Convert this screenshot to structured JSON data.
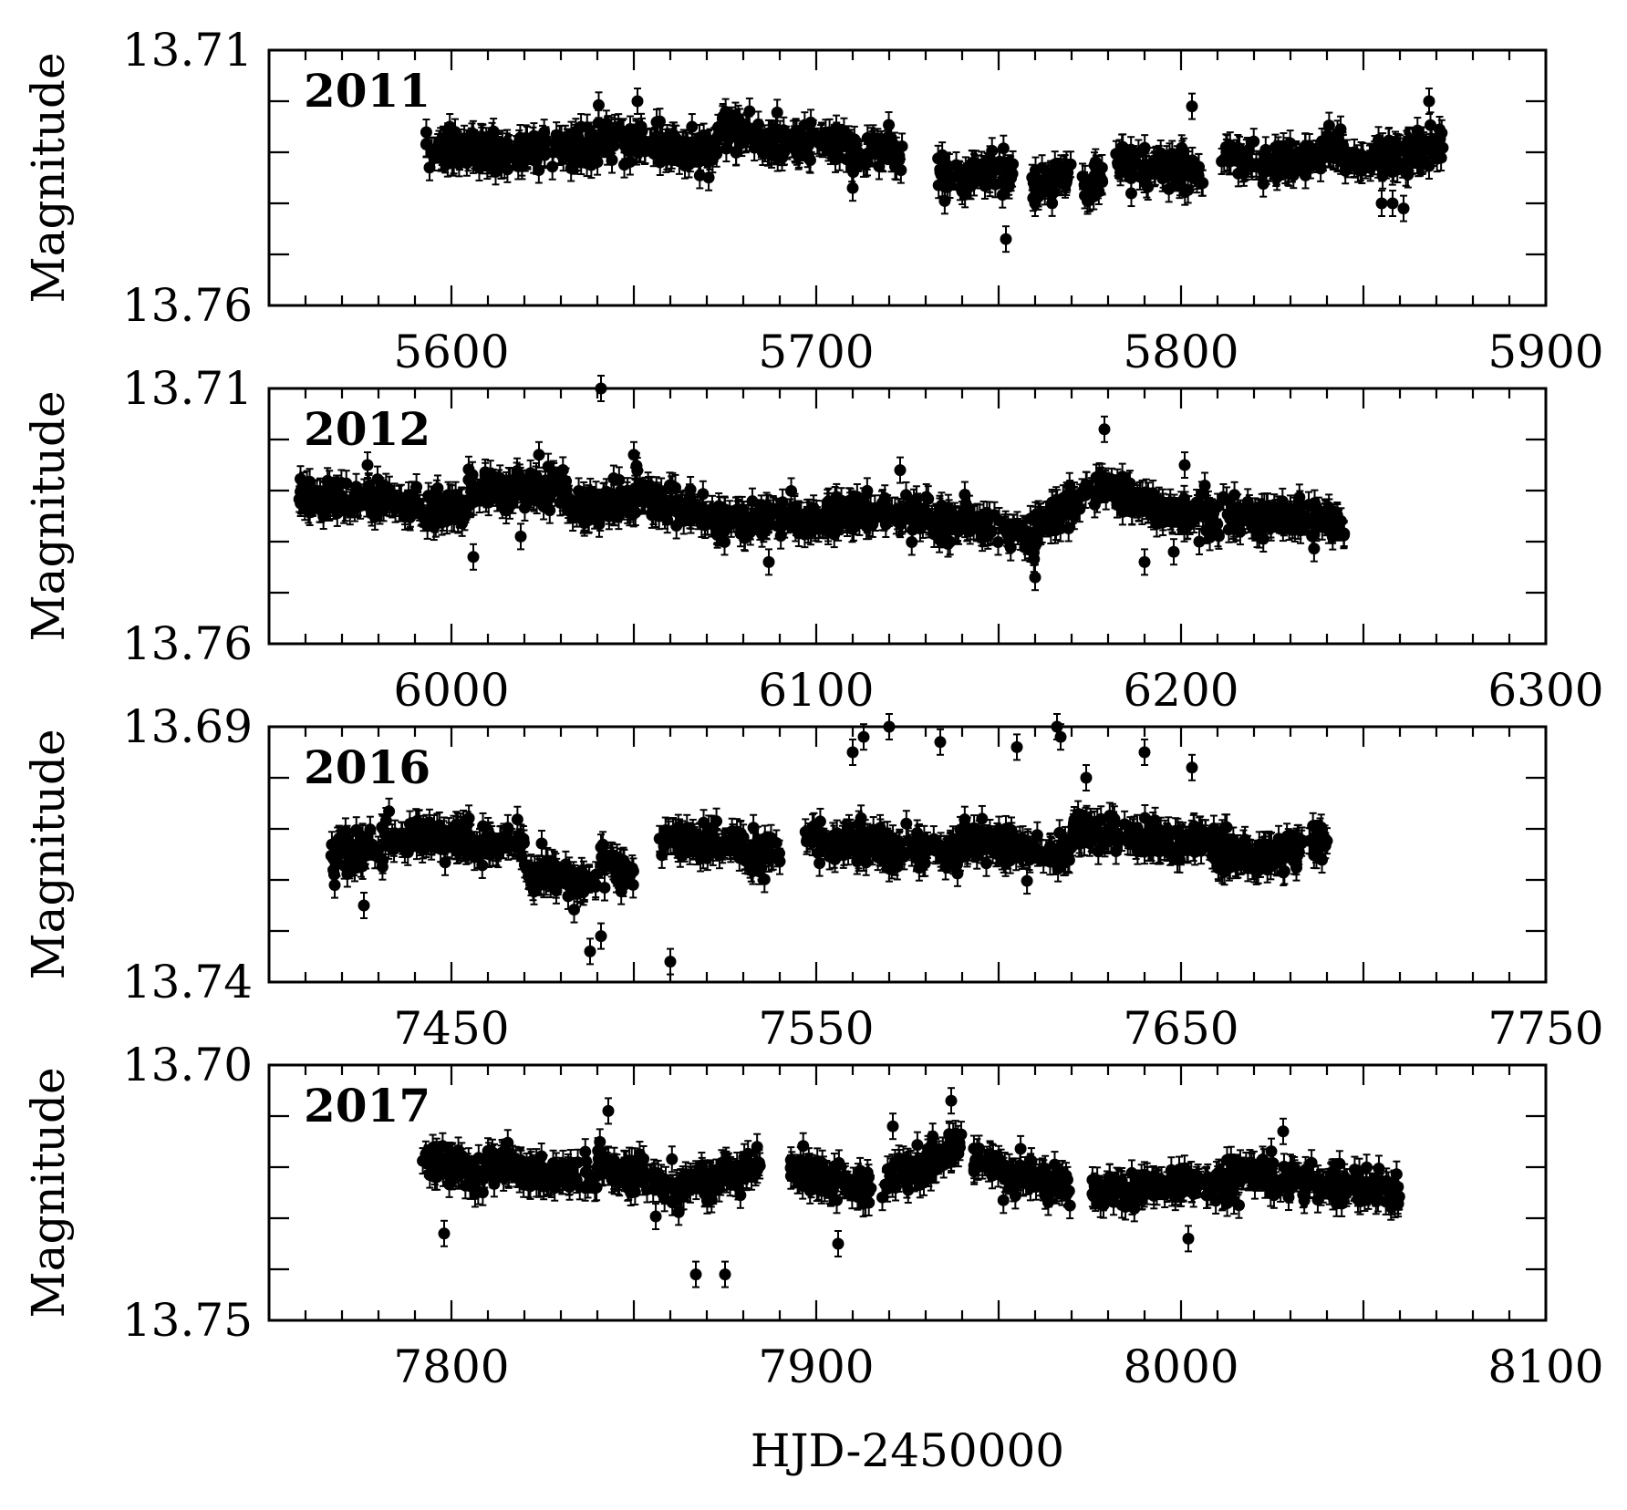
{
  "chart_data": [
    {
      "type": "scatter",
      "panel_label": "2011",
      "ylabel": "Magnitude",
      "xlim": [
        5550,
        5900
      ],
      "ylim": [
        13.76,
        13.71
      ],
      "y_inverted": true,
      "x_ticks": [
        5600,
        5700,
        5800,
        5900
      ],
      "y_tick_labels": [
        "13.71",
        "13.76"
      ],
      "segments": [
        {
          "x": [
            5593,
            5612
          ],
          "y": [
            13.729,
            13.73
          ]
        },
        {
          "x": [
            5612,
            5640
          ],
          "y": [
            13.73,
            13.729
          ]
        },
        {
          "x": [
            5640,
            5673
          ],
          "y": [
            13.727,
            13.73
          ]
        },
        {
          "x": [
            5673,
            5700
          ],
          "y": [
            13.725,
            13.729
          ]
        },
        {
          "x": [
            5700,
            5714
          ],
          "y": [
            13.727,
            13.731
          ]
        },
        {
          "x": [
            5714,
            5724
          ],
          "y": [
            13.728,
            13.731
          ]
        },
        {
          "x": [
            5733,
            5754
          ],
          "y": [
            13.734,
            13.734
          ]
        },
        {
          "x": [
            5759,
            5770
          ],
          "y": [
            13.736,
            13.735
          ]
        },
        {
          "x": [
            5773,
            5779
          ],
          "y": [
            13.738,
            13.734
          ]
        },
        {
          "x": [
            5782,
            5806
          ],
          "y": [
            13.732,
            13.734
          ]
        },
        {
          "x": [
            5811,
            5830
          ],
          "y": [
            13.731,
            13.732
          ]
        },
        {
          "x": [
            5830,
            5845
          ],
          "y": [
            13.732,
            13.729
          ]
        },
        {
          "x": [
            5845,
            5872
          ],
          "y": [
            13.732,
            13.729
          ]
        }
      ],
      "outliers": [
        {
          "x": [
            5594,
            5598,
            5601,
            5651,
            5803,
            5868
          ],
          "y": [
            13.733,
            13.728,
            13.726,
            13.72,
            13.721,
            13.72
          ]
        },
        {
          "x": [
            5710,
            5752,
            5760,
            5855,
            5858,
            5861
          ],
          "y": [
            13.737,
            13.747,
            13.74,
            13.74,
            13.74,
            13.741
          ]
        }
      ],
      "error_bar": 0.0025
    },
    {
      "type": "scatter",
      "panel_label": "2012",
      "ylabel": "Magnitude",
      "xlim": [
        5950,
        6300
      ],
      "ylim": [
        13.76,
        13.71
      ],
      "y_inverted": true,
      "x_ticks": [
        6000,
        6100,
        6200,
        6300
      ],
      "y_tick_labels": [
        "13.71",
        "13.76"
      ],
      "segments": [
        {
          "x": [
            5958,
            5976
          ],
          "y": [
            13.731,
            13.731
          ]
        },
        {
          "x": [
            5976,
            6004
          ],
          "y": [
            13.731,
            13.734
          ]
        },
        {
          "x": [
            6004,
            6032
          ],
          "y": [
            13.73,
            13.73
          ]
        },
        {
          "x": [
            6032,
            6050
          ],
          "y": [
            13.733,
            13.732
          ]
        },
        {
          "x": [
            6050,
            6072
          ],
          "y": [
            13.731,
            13.735
          ]
        },
        {
          "x": [
            6072,
            6105
          ],
          "y": [
            13.736,
            13.735
          ]
        },
        {
          "x": [
            6105,
            6140
          ],
          "y": [
            13.734,
            13.736
          ]
        },
        {
          "x": [
            6140,
            6160
          ],
          "y": [
            13.735,
            13.74
          ]
        },
        {
          "x": [
            6160,
            6178
          ],
          "y": [
            13.737,
            13.729
          ]
        },
        {
          "x": [
            6178,
            6193
          ],
          "y": [
            13.728,
            13.734
          ]
        },
        {
          "x": [
            6193,
            6225
          ],
          "y": [
            13.734,
            13.735
          ]
        },
        {
          "x": [
            6225,
            6245
          ],
          "y": [
            13.734,
            13.737
          ]
        }
      ],
      "outliers": [
        {
          "x": [
            5977,
            6024,
            6041,
            6050,
            6123,
            6178,
            6179,
            6201
          ],
          "y": [
            13.725,
            13.723,
            13.71,
            13.723,
            13.726,
            13.728,
            13.718,
            13.725
          ]
        },
        {
          "x": [
            6006,
            6019,
            6087,
            6160,
            6190,
            6198,
            6205
          ],
          "y": [
            13.743,
            13.739,
            13.744,
            13.747,
            13.744,
            13.742,
            13.74
          ]
        }
      ],
      "error_bar": 0.0025
    },
    {
      "type": "scatter",
      "panel_label": "2016",
      "ylabel": "Magnitude",
      "xlim": [
        7400,
        7750
      ],
      "ylim": [
        13.74,
        13.69
      ],
      "y_inverted": true,
      "x_ticks": [
        7450,
        7550,
        7650,
        7750
      ],
      "y_tick_labels": [
        "13.69",
        "13.74"
      ],
      "segments": [
        {
          "x": [
            7417,
            7440
          ],
          "y": [
            13.716,
            13.711
          ]
        },
        {
          "x": [
            7440,
            7470
          ],
          "y": [
            13.712,
            13.713
          ]
        },
        {
          "x": [
            7470,
            7490
          ],
          "y": [
            13.718,
            13.722
          ]
        },
        {
          "x": [
            7490,
            7500
          ],
          "y": [
            13.716,
            13.719
          ]
        },
        {
          "x": [
            7507,
            7530
          ],
          "y": [
            13.712,
            13.713
          ]
        },
        {
          "x": [
            7530,
            7540
          ],
          "y": [
            13.714,
            13.716
          ]
        },
        {
          "x": [
            7547,
            7570
          ],
          "y": [
            13.712,
            13.714
          ]
        },
        {
          "x": [
            7570,
            7590
          ],
          "y": [
            13.714,
            13.714
          ]
        },
        {
          "x": [
            7590,
            7620
          ],
          "y": [
            13.712,
            13.715
          ]
        },
        {
          "x": [
            7620,
            7650
          ],
          "y": [
            13.71,
            13.713
          ]
        },
        {
          "x": [
            7650,
            7670
          ],
          "y": [
            13.711,
            13.716
          ]
        },
        {
          "x": [
            7670,
            7690
          ],
          "y": [
            13.716,
            13.712
          ]
        }
      ],
      "outliers": [
        {
          "x": [
            7560,
            7563,
            7570,
            7584,
            7605,
            7616,
            7617,
            7624,
            7640,
            7653
          ],
          "y": [
            13.695,
            13.692,
            13.69,
            13.693,
            13.694,
            13.69,
            13.692,
            13.7,
            13.695,
            13.698
          ]
        },
        {
          "x": [
            7418,
            7426,
            7491,
            7510,
            7488
          ],
          "y": [
            13.721,
            13.725,
            13.731,
            13.736,
            13.734
          ]
        }
      ],
      "error_bar": 0.0025
    },
    {
      "type": "scatter",
      "panel_label": "2017",
      "ylabel": "Magnitude",
      "xlabel": "HJD-2450000",
      "xlim": [
        7750,
        8100
      ],
      "ylim": [
        13.75,
        13.7
      ],
      "y_inverted": true,
      "x_ticks": [
        7800,
        7900,
        8000,
        8100
      ],
      "y_tick_labels": [
        "13.70",
        "13.75"
      ],
      "segments": [
        {
          "x": [
            7792,
            7810
          ],
          "y": [
            13.718,
            13.722
          ]
        },
        {
          "x": [
            7810,
            7840
          ],
          "y": [
            13.719,
            13.723
          ]
        },
        {
          "x": [
            7840,
            7865
          ],
          "y": [
            13.719,
            13.725
          ]
        },
        {
          "x": [
            7865,
            7885
          ],
          "y": [
            13.723,
            13.72
          ]
        },
        {
          "x": [
            7893,
            7915
          ],
          "y": [
            13.721,
            13.724
          ]
        },
        {
          "x": [
            7918,
            7940
          ],
          "y": [
            13.723,
            13.716
          ]
        },
        {
          "x": [
            7943,
            7970
          ],
          "y": [
            13.719,
            13.724
          ]
        },
        {
          "x": [
            7975,
            8000
          ],
          "y": [
            13.725,
            13.723
          ]
        },
        {
          "x": [
            8000,
            8025
          ],
          "y": [
            13.724,
            13.721
          ]
        },
        {
          "x": [
            8025,
            8060
          ],
          "y": [
            13.722,
            13.725
          ]
        }
      ],
      "outliers": [
        {
          "x": [
            7843,
            7937,
            7921,
            8028
          ],
          "y": [
            13.709,
            13.707,
            13.712,
            13.713
          ]
        },
        {
          "x": [
            7867,
            7875,
            7798,
            7906,
            8002
          ],
          "y": [
            13.741,
            13.741,
            13.733,
            13.735,
            13.734
          ]
        }
      ],
      "error_bar": 0.0025
    }
  ]
}
